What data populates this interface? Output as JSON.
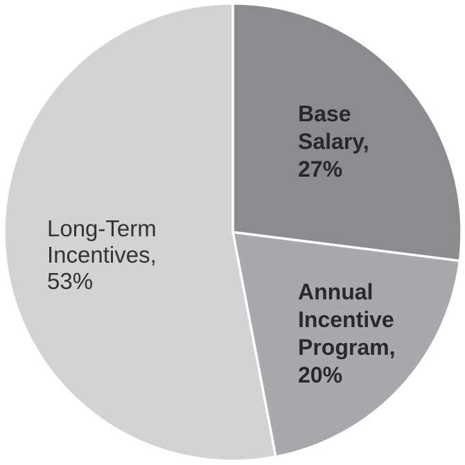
{
  "chart_data": {
    "type": "pie",
    "title": "",
    "direction": "clockwise",
    "start_angle_deg": 0,
    "separator_color": "#ffffff",
    "legend": "none",
    "labels_position": "inside",
    "slices": [
      {
        "label": "Base Salary",
        "value": 27,
        "display": "Base Salary, 27%",
        "color": "#8b8b90",
        "label_color": "#29292c",
        "label_bold": true
      },
      {
        "label": "Annual Incentive Program",
        "value": 20,
        "display": "Annual Incentive Program, 20%",
        "color": "#a8a9ad",
        "label_color": "#29292c",
        "label_bold": true
      },
      {
        "label": "Long-Term Incentives",
        "value": 53,
        "display": "Long-Term Incentives, 53%",
        "color": "#d2d3d5",
        "label_color": "#333336",
        "label_bold": false
      }
    ]
  }
}
